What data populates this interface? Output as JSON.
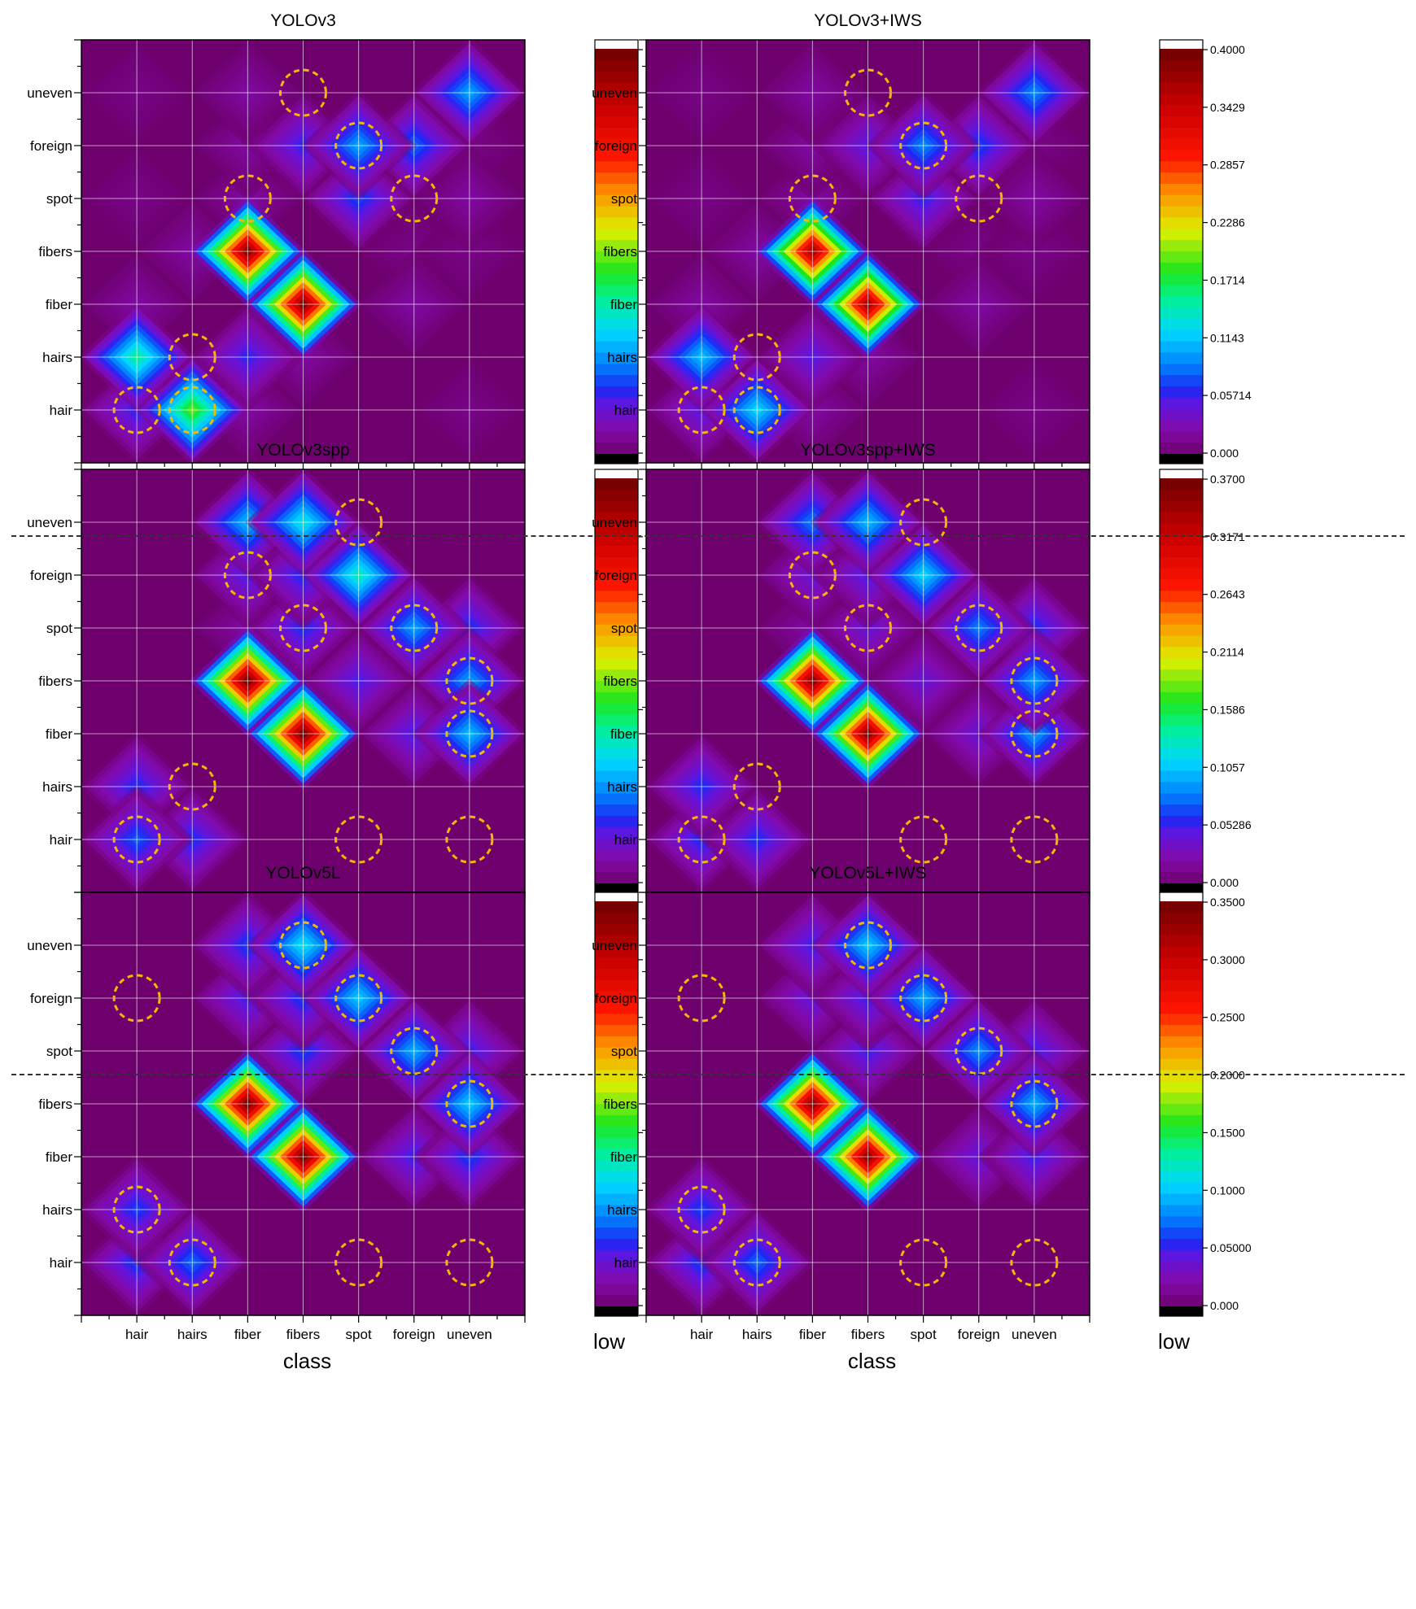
{
  "figure": {
    "categories": [
      "hair",
      "hairs",
      "fiber",
      "fibers",
      "spot",
      "foreign",
      "uneven"
    ],
    "xlabel": "class",
    "colorbar_caption": "low"
  },
  "chart_data": [
    {
      "type": "heatmap",
      "title": "YOLOv3",
      "categories_x": [
        "hair",
        "hairs",
        "fiber",
        "fibers",
        "spot",
        "foreign",
        "uneven"
      ],
      "categories_y": [
        "hair",
        "hairs",
        "fiber",
        "fibers",
        "spot",
        "foreign",
        "uneven"
      ],
      "xlabel": "class",
      "colorbar": {
        "min": 0.0,
        "max": 0.4,
        "ticks": [
          "0.4000",
          "0.3429",
          "0.2857",
          "0.2286",
          "0.1714",
          "0.1143",
          "0.05714",
          "0.000"
        ],
        "caption": "low"
      },
      "values": [
        [
          0.06,
          0.19,
          0.02,
          0.0,
          0.0,
          0.0,
          0.01
        ],
        [
          0.15,
          0.0,
          0.06,
          0.02,
          0.0,
          0.0,
          0.0
        ],
        [
          0.02,
          0.0,
          0.0,
          0.38,
          0.0,
          0.02,
          0.0
        ],
        [
          0.0,
          0.02,
          0.38,
          0.0,
          0.0,
          0.01,
          0.01
        ],
        [
          0.01,
          0.0,
          0.02,
          0.0,
          0.07,
          0.0,
          0.02
        ],
        [
          0.0,
          0.0,
          0.02,
          0.06,
          0.1,
          0.08,
          0.01
        ],
        [
          0.01,
          0.0,
          0.02,
          0.0,
          0.0,
          0.0,
          0.1
        ]
      ],
      "highlights": [
        [
          0,
          0
        ],
        [
          1,
          1
        ],
        [
          2,
          4
        ],
        [
          3,
          6
        ],
        [
          4,
          5
        ],
        [
          5,
          4
        ],
        [
          1,
          0
        ]
      ]
    },
    {
      "type": "heatmap",
      "title": "YOLOv3+IWS",
      "categories_x": [
        "hair",
        "hairs",
        "fiber",
        "fibers",
        "spot",
        "foreign",
        "uneven"
      ],
      "categories_y": [
        "hair",
        "hairs",
        "fiber",
        "fibers",
        "spot",
        "foreign",
        "uneven"
      ],
      "xlabel": "class",
      "colorbar": {
        "min": 0.0,
        "max": 0.4,
        "ticks": [
          "0.4000",
          "0.3429",
          "0.2857",
          "0.2286",
          "0.1714",
          "0.1143",
          "0.05714",
          "0.000"
        ],
        "caption": "low"
      },
      "values": [
        [
          0.05,
          0.12,
          0.02,
          0.0,
          0.0,
          0.0,
          0.01
        ],
        [
          0.11,
          0.0,
          0.05,
          0.02,
          0.0,
          0.0,
          0.0
        ],
        [
          0.02,
          0.0,
          0.0,
          0.36,
          0.0,
          0.02,
          0.0
        ],
        [
          0.0,
          0.02,
          0.36,
          0.0,
          0.0,
          0.01,
          0.01
        ],
        [
          0.01,
          0.0,
          0.02,
          0.0,
          0.06,
          0.0,
          0.02
        ],
        [
          0.0,
          0.0,
          0.02,
          0.05,
          0.09,
          0.07,
          0.01
        ],
        [
          0.01,
          0.0,
          0.02,
          0.0,
          0.0,
          0.0,
          0.09
        ]
      ],
      "highlights": [
        [
          0,
          0
        ],
        [
          1,
          1
        ],
        [
          2,
          4
        ],
        [
          3,
          6
        ],
        [
          4,
          5
        ],
        [
          5,
          4
        ],
        [
          1,
          0
        ]
      ]
    },
    {
      "type": "heatmap",
      "title": "YOLOv3spp",
      "categories_x": [
        "hair",
        "hairs",
        "fiber",
        "fibers",
        "spot",
        "foreign",
        "uneven"
      ],
      "categories_y": [
        "hair",
        "hairs",
        "fiber",
        "fibers",
        "spot",
        "foreign",
        "uneven"
      ],
      "xlabel": "class",
      "colorbar": {
        "min": 0.0,
        "max": 0.37,
        "ticks": [
          "0.3700",
          "0.3171",
          "0.2643",
          "0.2114",
          "0.1586",
          "0.1057",
          "0.05286",
          "0.000"
        ],
        "caption": "low"
      },
      "values": [
        [
          0.07,
          0.06,
          0.0,
          0.0,
          0.0,
          0.0,
          0.0
        ],
        [
          0.06,
          0.0,
          0.0,
          0.0,
          0.0,
          0.0,
          0.0
        ],
        [
          0.0,
          0.0,
          0.0,
          0.36,
          0.0,
          0.05,
          0.1
        ],
        [
          0.0,
          0.0,
          0.36,
          0.0,
          0.05,
          0.0,
          0.09
        ],
        [
          0.0,
          0.0,
          0.02,
          0.06,
          0.0,
          0.09,
          0.06
        ],
        [
          0.0,
          0.0,
          0.05,
          0.06,
          0.13,
          0.0,
          0.0
        ],
        [
          0.0,
          0.0,
          0.1,
          0.12,
          0.0,
          0.0,
          0.0
        ]
      ],
      "highlights": [
        [
          0,
          0
        ],
        [
          1,
          1
        ],
        [
          4,
          0
        ],
        [
          6,
          0
        ],
        [
          2,
          5
        ],
        [
          3,
          4
        ],
        [
          4,
          6
        ],
        [
          5,
          4
        ],
        [
          6,
          2
        ],
        [
          6,
          3
        ]
      ]
    },
    {
      "type": "heatmap",
      "title": "YOLOv3spp+IWS",
      "categories_x": [
        "hair",
        "hairs",
        "fiber",
        "fibers",
        "spot",
        "foreign",
        "uneven"
      ],
      "categories_y": [
        "hair",
        "hairs",
        "fiber",
        "fibers",
        "spot",
        "foreign",
        "uneven"
      ],
      "xlabel": "class",
      "colorbar": {
        "min": 0.0,
        "max": 0.37,
        "ticks": [
          "0.3700",
          "0.3171",
          "0.2643",
          "0.2114",
          "0.1586",
          "0.1057",
          "0.05286",
          "0.000"
        ],
        "caption": "low"
      },
      "values": [
        [
          0.06,
          0.06,
          0.0,
          0.0,
          0.0,
          0.0,
          0.0
        ],
        [
          0.06,
          0.0,
          0.0,
          0.0,
          0.0,
          0.0,
          0.0
        ],
        [
          0.0,
          0.0,
          0.0,
          0.35,
          0.0,
          0.04,
          0.09
        ],
        [
          0.0,
          0.0,
          0.35,
          0.0,
          0.04,
          0.0,
          0.09
        ],
        [
          0.0,
          0.0,
          0.02,
          0.04,
          0.0,
          0.08,
          0.06
        ],
        [
          0.0,
          0.0,
          0.04,
          0.05,
          0.11,
          0.0,
          0.0
        ],
        [
          0.0,
          0.0,
          0.08,
          0.1,
          0.0,
          0.0,
          0.0
        ]
      ],
      "highlights": [
        [
          0,
          0
        ],
        [
          1,
          1
        ],
        [
          4,
          0
        ],
        [
          6,
          0
        ],
        [
          2,
          5
        ],
        [
          3,
          4
        ],
        [
          4,
          6
        ],
        [
          5,
          4
        ],
        [
          6,
          2
        ],
        [
          6,
          3
        ]
      ]
    },
    {
      "type": "heatmap",
      "title": "YOLOv5L",
      "categories_x": [
        "hair",
        "hairs",
        "fiber",
        "fibers",
        "spot",
        "foreign",
        "uneven"
      ],
      "categories_y": [
        "hair",
        "hairs",
        "fiber",
        "fibers",
        "spot",
        "foreign",
        "uneven"
      ],
      "xlabel": "class",
      "colorbar": {
        "min": 0.0,
        "max": 0.35,
        "ticks": [
          "0.3500",
          "0.3000",
          "0.2500",
          "0.2000",
          "0.1500",
          "0.1000",
          "0.05000",
          "0.000"
        ],
        "caption": "low"
      },
      "values": [
        [
          0.06,
          0.07,
          0.0,
          0.0,
          0.0,
          0.0,
          0.0
        ],
        [
          0.06,
          0.0,
          0.0,
          0.0,
          0.0,
          0.0,
          0.0
        ],
        [
          0.0,
          0.0,
          0.0,
          0.34,
          0.0,
          0.05,
          0.06
        ],
        [
          0.0,
          0.0,
          0.34,
          0.0,
          0.0,
          0.0,
          0.1
        ],
        [
          0.0,
          0.0,
          0.0,
          0.06,
          0.0,
          0.09,
          0.05
        ],
        [
          0.0,
          0.0,
          0.05,
          0.06,
          0.1,
          0.0,
          0.0
        ],
        [
          0.0,
          0.0,
          0.06,
          0.11,
          0.0,
          0.0,
          0.0
        ]
      ],
      "highlights": [
        [
          0,
          1
        ],
        [
          1,
          0
        ],
        [
          4,
          0
        ],
        [
          6,
          0
        ],
        [
          0,
          5
        ],
        [
          3,
          6
        ],
        [
          4,
          5
        ],
        [
          5,
          4
        ],
        [
          6,
          3
        ]
      ]
    },
    {
      "type": "heatmap",
      "title": "YOLOv5L+IWS",
      "categories_x": [
        "hair",
        "hairs",
        "fiber",
        "fibers",
        "spot",
        "foreign",
        "uneven"
      ],
      "categories_y": [
        "hair",
        "hairs",
        "fiber",
        "fibers",
        "spot",
        "foreign",
        "uneven"
      ],
      "xlabel": "class",
      "colorbar": {
        "min": 0.0,
        "max": 0.35,
        "ticks": [
          "0.3500",
          "0.3000",
          "0.2500",
          "0.2000",
          "0.1500",
          "0.1000",
          "0.05000",
          "0.000"
        ],
        "caption": "low"
      },
      "values": [
        [
          0.06,
          0.07,
          0.0,
          0.0,
          0.0,
          0.0,
          0.0
        ],
        [
          0.06,
          0.0,
          0.0,
          0.0,
          0.0,
          0.0,
          0.0
        ],
        [
          0.0,
          0.0,
          0.0,
          0.33,
          0.0,
          0.04,
          0.05
        ],
        [
          0.0,
          0.0,
          0.33,
          0.0,
          0.0,
          0.0,
          0.09
        ],
        [
          0.0,
          0.0,
          0.0,
          0.05,
          0.0,
          0.08,
          0.05
        ],
        [
          0.0,
          0.0,
          0.04,
          0.05,
          0.09,
          0.0,
          0.0
        ],
        [
          0.0,
          0.0,
          0.05,
          0.1,
          0.0,
          0.0,
          0.0
        ]
      ],
      "highlights": [
        [
          0,
          1
        ],
        [
          1,
          0
        ],
        [
          4,
          0
        ],
        [
          6,
          0
        ],
        [
          0,
          5
        ],
        [
          3,
          6
        ],
        [
          4,
          5
        ],
        [
          5,
          4
        ],
        [
          6,
          3
        ]
      ]
    }
  ]
}
